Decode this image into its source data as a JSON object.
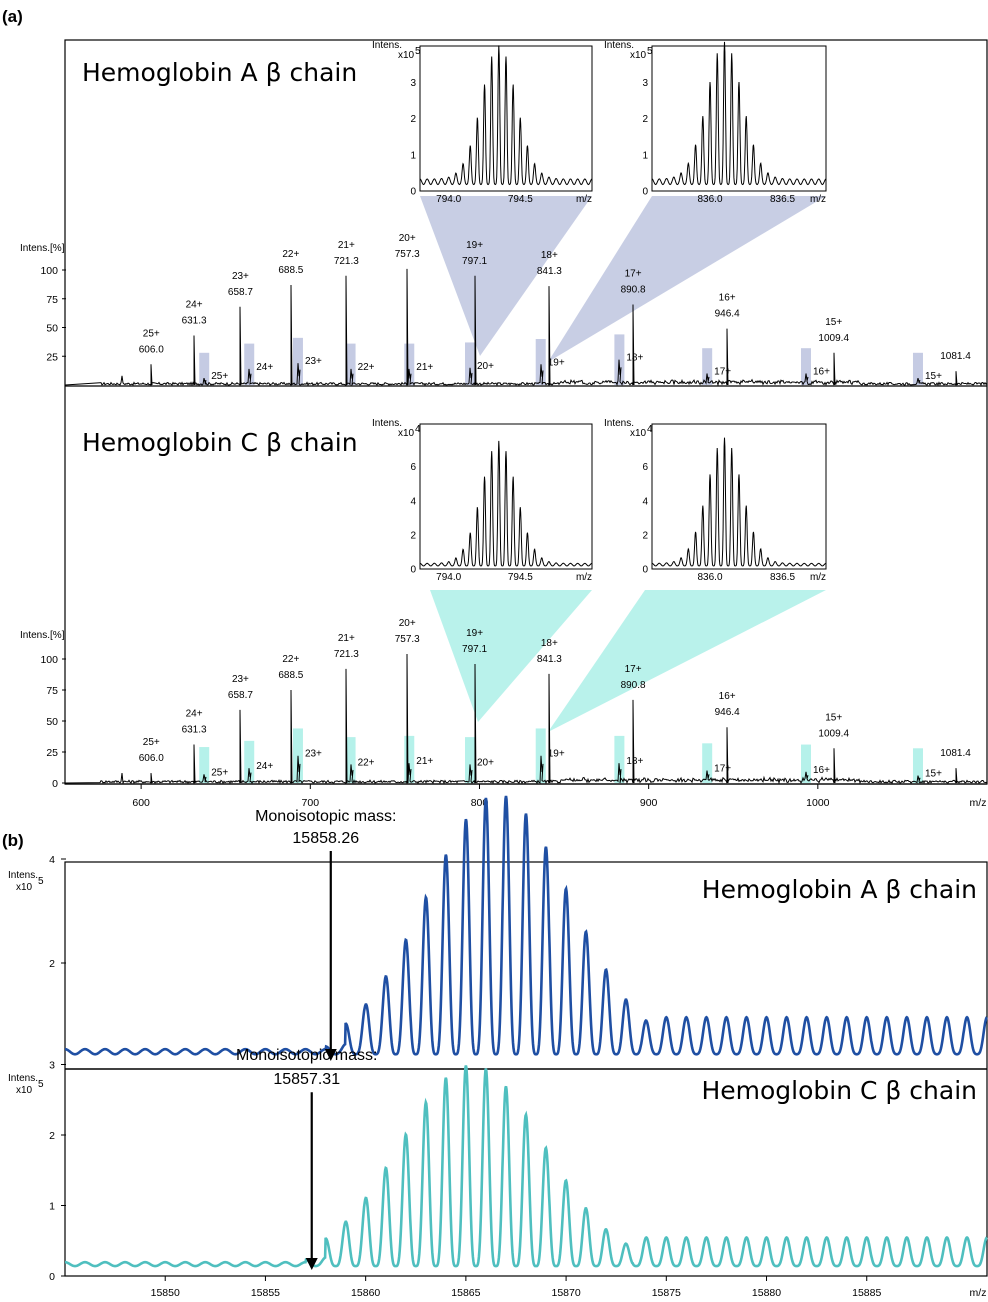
{
  "panel_labels": [
    "(a)",
    "(b)"
  ],
  "chart_data": [
    {
      "type": "line",
      "title": "Hemoglobin A β chain",
      "subtitle": "",
      "ylabel": "Intens.[%]",
      "xlabel": "m/z",
      "ylim": [
        0,
        120
      ],
      "yticks": [
        25,
        50,
        75,
        100
      ],
      "highlight_color": "#c5cbe3",
      "line_color": "#000000",
      "peaks": [
        {
          "charge": "25+",
          "mz": 606.0,
          "label": "606.0",
          "height": 18
        },
        {
          "charge": "24+",
          "mz": 631.3,
          "label": "631.3",
          "height": 43
        },
        {
          "charge": "23+",
          "mz": 658.7,
          "label": "658.7",
          "height": 68
        },
        {
          "charge": "22+",
          "mz": 688.5,
          "label": "688.5",
          "height": 87
        },
        {
          "charge": "21+",
          "mz": 721.3,
          "label": "721.3",
          "height": 95
        },
        {
          "charge": "20+",
          "mz": 757.3,
          "label": "757.3",
          "height": 101
        },
        {
          "charge": "19+",
          "mz": 797.1,
          "label": "797.1",
          "height": 95
        },
        {
          "charge": "18+",
          "mz": 841.3,
          "label": "841.3",
          "height": 86
        },
        {
          "charge": "17+",
          "mz": 890.8,
          "label": "890.8",
          "height": 70
        },
        {
          "charge": "16+",
          "mz": 946.4,
          "label": "946.4",
          "height": 49
        },
        {
          "charge": "15+",
          "mz": 1009.4,
          "label": "1009.4",
          "height": 28
        },
        {
          "charge": "",
          "mz": 1081.4,
          "label": "1081.4",
          "height": 12
        }
      ],
      "secondary_peaks": [
        {
          "charge": "25+",
          "mz": 637.3,
          "height": 6
        },
        {
          "charge": "24+",
          "mz": 663.9,
          "height": 14
        },
        {
          "charge": "23+",
          "mz": 692.7,
          "height": 19
        },
        {
          "charge": "22+",
          "mz": 723.8,
          "height": 14
        },
        {
          "charge": "21+",
          "mz": 758.5,
          "height": 14
        },
        {
          "charge": "20+",
          "mz": 794.4,
          "height": 15
        },
        {
          "charge": "19+",
          "mz": 836.2,
          "height": 18
        },
        {
          "charge": "18+",
          "mz": 882.7,
          "height": 22
        },
        {
          "charge": "17+",
          "mz": 934.6,
          "height": 10
        },
        {
          "charge": "16+",
          "mz": 993.0,
          "height": 10
        },
        {
          "charge": "15+",
          "mz": 1059.2,
          "height": 6
        }
      ],
      "insets": [
        {
          "ylabel": "Intens.",
          "yscale": "x10",
          "yexp": "5",
          "xlabel": "m/z",
          "xlim": [
            793.8,
            795.0
          ],
          "xticks": [
            "794.0",
            "794.5"
          ],
          "ylim": [
            0,
            4
          ],
          "yticks": [
            "0",
            "1",
            "2",
            "3"
          ],
          "center": 794.35,
          "peak": 3.8,
          "spacing": 0.05
        },
        {
          "ylabel": "Intens.",
          "yscale": "x10",
          "yexp": "5",
          "xlabel": "m/z",
          "xlim": [
            835.6,
            836.8
          ],
          "xticks": [
            "836.0",
            "836.5"
          ],
          "ylim": [
            0,
            4
          ],
          "yticks": [
            "0",
            "1",
            "2",
            "3"
          ],
          "center": 836.1,
          "peak": 3.9,
          "spacing": 0.05
        }
      ]
    },
    {
      "type": "line",
      "title": "Hemoglobin C β chain",
      "subtitle": "",
      "ylabel": "Intens.[%]",
      "xlabel": "m/z",
      "xlim": [
        555,
        1100
      ],
      "xticks": [
        600,
        700,
        800,
        900,
        1000
      ],
      "ylim": [
        0,
        120
      ],
      "yticks": [
        0,
        25,
        50,
        75,
        100
      ],
      "highlight_color": "#b5f1ea",
      "line_color": "#000000",
      "peaks": [
        {
          "charge": "25+",
          "mz": 606.0,
          "label": "606.0",
          "height": 8
        },
        {
          "charge": "24+",
          "mz": 631.3,
          "label": "631.3",
          "height": 31
        },
        {
          "charge": "23+",
          "mz": 658.7,
          "label": "658.7",
          "height": 59
        },
        {
          "charge": "22+",
          "mz": 688.5,
          "label": "688.5",
          "height": 75
        },
        {
          "charge": "21+",
          "mz": 721.3,
          "label": "721.3",
          "height": 92
        },
        {
          "charge": "20+",
          "mz": 757.3,
          "label": "757.3",
          "height": 104
        },
        {
          "charge": "19+",
          "mz": 797.1,
          "label": "797.1",
          "height": 96
        },
        {
          "charge": "18+",
          "mz": 841.3,
          "label": "841.3",
          "height": 88
        },
        {
          "charge": "17+",
          "mz": 890.8,
          "label": "890.8",
          "height": 67
        },
        {
          "charge": "16+",
          "mz": 946.4,
          "label": "946.4",
          "height": 45
        },
        {
          "charge": "15+",
          "mz": 1009.4,
          "label": "1009.4",
          "height": 28
        },
        {
          "charge": "",
          "mz": 1081.4,
          "label": "1081.4",
          "height": 12
        }
      ],
      "secondary_peaks": [
        {
          "charge": "25+",
          "mz": 637.3,
          "height": 7
        },
        {
          "charge": "24+",
          "mz": 663.9,
          "height": 12
        },
        {
          "charge": "23+",
          "mz": 692.7,
          "height": 22
        },
        {
          "charge": "22+",
          "mz": 723.8,
          "height": 15
        },
        {
          "charge": "21+",
          "mz": 758.5,
          "height": 16
        },
        {
          "charge": "20+",
          "mz": 794.4,
          "height": 15
        },
        {
          "charge": "19+",
          "mz": 836.2,
          "height": 22
        },
        {
          "charge": "18+",
          "mz": 882.7,
          "height": 16
        },
        {
          "charge": "17+",
          "mz": 934.6,
          "height": 10
        },
        {
          "charge": "16+",
          "mz": 993.0,
          "height": 9
        },
        {
          "charge": "15+",
          "mz": 1059.2,
          "height": 6
        }
      ],
      "insets": [
        {
          "ylabel": "Intens.",
          "yscale": "x10",
          "yexp": "4",
          "xlabel": "m/z",
          "xlim": [
            793.8,
            795.0
          ],
          "xticks": [
            "794.0",
            "794.5"
          ],
          "ylim": [
            0,
            8.5
          ],
          "yticks": [
            "0",
            "2",
            "4",
            "6"
          ],
          "center": 794.35,
          "peak": 7.4,
          "spacing": 0.05
        },
        {
          "ylabel": "Intens.",
          "yscale": "x10",
          "yexp": "4",
          "xlabel": "m/z",
          "xlim": [
            835.6,
            836.8
          ],
          "xticks": [
            "836.0",
            "836.5"
          ],
          "ylim": [
            0,
            8.5
          ],
          "yticks": [
            "0",
            "2",
            "4",
            "6"
          ],
          "center": 836.1,
          "peak": 7.6,
          "spacing": 0.05
        }
      ]
    },
    {
      "type": "line",
      "title": "Hemoglobin A β chain",
      "subtitle": "",
      "ylabel": "Intens.",
      "yscale": "x10",
      "yexp": "5",
      "xlabel": "m/z",
      "ylim": [
        0,
        5.5
      ],
      "yticks": [
        2,
        4
      ],
      "line_color": "#1f4fa3",
      "annotation": {
        "label": "Monoisotopic mass:",
        "value": "15858.26",
        "x": 15858.26
      },
      "envelope": {
        "start": 15859,
        "center": 15866.6,
        "end": 15889,
        "peak": 4.9
      },
      "marked_peaks": [
        {
          "x": 15867.9,
          "y": 4.9
        }
      ]
    },
    {
      "type": "line",
      "title": "Hemoglobin C β chain",
      "subtitle": "",
      "ylabel": "Intens.",
      "yscale": "x10",
      "yexp": "5",
      "xlabel": "m/z",
      "xlim": [
        15845,
        15891
      ],
      "xticks": [
        15850,
        15855,
        15860,
        15865,
        15870,
        15875,
        15880,
        15885
      ],
      "ylim": [
        0,
        3.6
      ],
      "yticks": [
        0,
        1,
        2,
        3
      ],
      "line_color": "#4fbfbf",
      "annotation": {
        "label": "Monoisotopic mass:",
        "value": "15857.31",
        "x": 15857.31
      },
      "envelope": {
        "start": 15858,
        "center": 15865.3,
        "end": 15889,
        "peak": 2.8
      },
      "marked_peaks": [
        {
          "x": 15864.3,
          "y": 2.8
        }
      ]
    }
  ]
}
